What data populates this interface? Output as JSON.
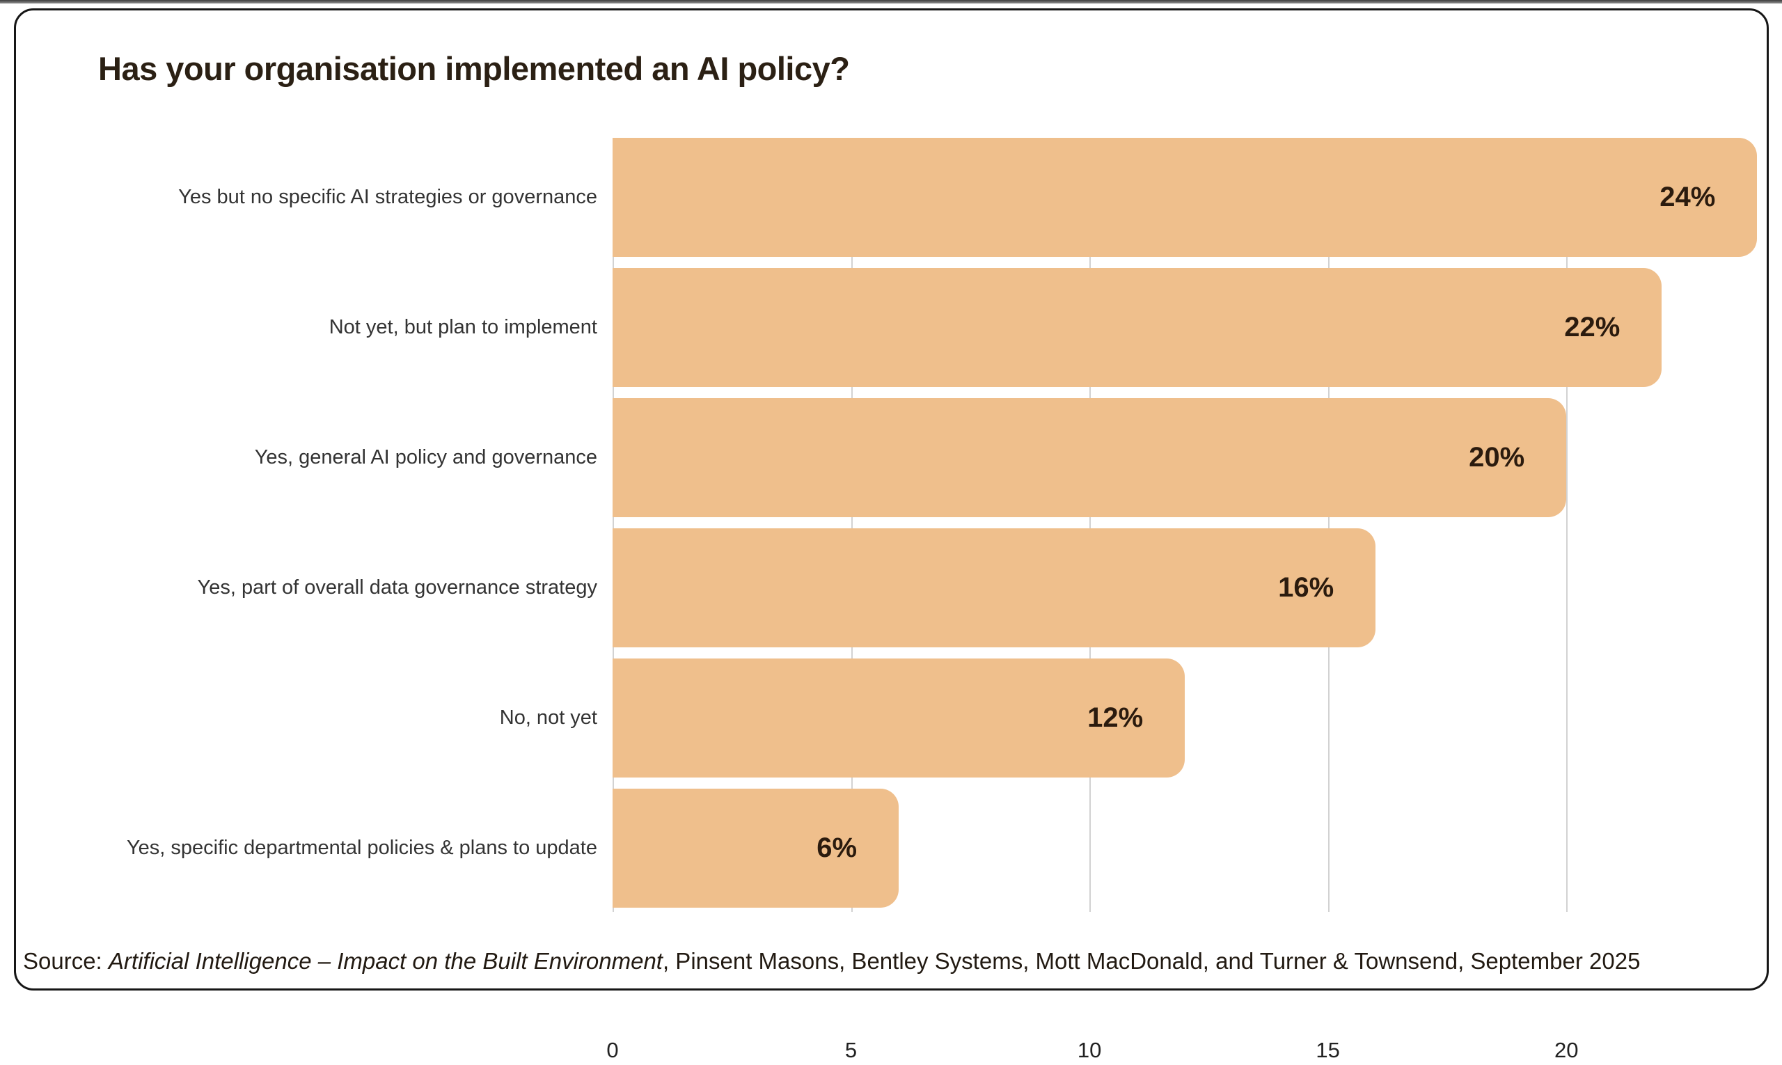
{
  "page": {
    "background": "#ffffff",
    "top_strip_color": "#4a4a4a"
  },
  "chart_data": {
    "type": "bar",
    "orientation": "horizontal",
    "title": "Has your organisation implemented an AI policy?",
    "categories": [
      "Yes but no specific AI strategies or governance",
      "Not yet, but plan to implement",
      "Yes, general AI policy and governance",
      "Yes, part of overall data governance strategy",
      "No, not yet",
      "Yes, specific departmental policies & plans to update"
    ],
    "values": [
      24,
      22,
      20,
      16,
      12,
      6
    ],
    "value_labels": [
      "24%",
      "22%",
      "20%",
      "16%",
      "12%",
      "6%"
    ],
    "x_ticks": [
      0,
      5,
      10,
      15,
      20
    ],
    "xlim": [
      0,
      24.2
    ],
    "xlabel": "",
    "ylabel": "",
    "grid": true,
    "legend": "none",
    "bar_color": "#efbf8c",
    "title_color": "#2b2014",
    "value_label_color": "#2b1b0e"
  },
  "source": {
    "prefix": "Source: ",
    "italic_title": "Artificial Intelligence – Impact on the Built Environment",
    "suffix": ", Pinsent Masons, Bentley Systems, Mott MacDonald, and Turner & Townsend, September 2025"
  }
}
